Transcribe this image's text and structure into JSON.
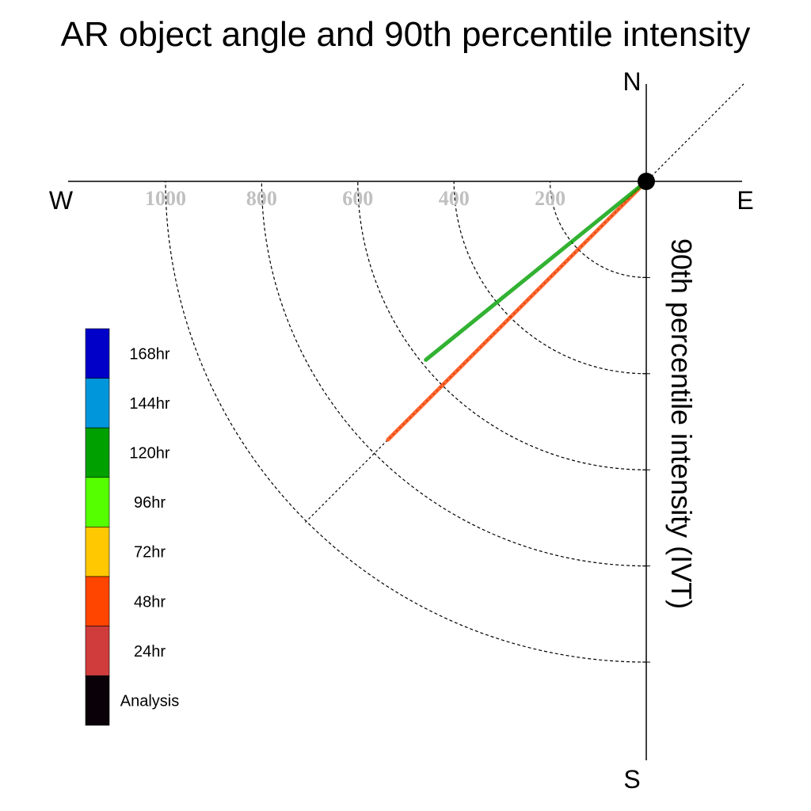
{
  "chart_data": {
    "type": "polar-line",
    "title": "AR object angle and 90th percentile intensity",
    "axis_title": "90th percentile intensity (IVT)",
    "directions": {
      "north": "N",
      "south": "S",
      "east": "E",
      "west": "W"
    },
    "ring_values": [
      200,
      400,
      600,
      800,
      1000
    ],
    "ring_labels": [
      "200",
      "400",
      "600",
      "800",
      "1000"
    ],
    "series": [
      {
        "name": "48hr",
        "angle_deg": 225,
        "magnitude": 760,
        "color": "#ff4500"
      },
      {
        "name": "120hr",
        "angle_deg": 231,
        "magnitude": 590,
        "color": "#00a000"
      }
    ],
    "reference_line_deg": [
      45,
      225
    ],
    "legend": {
      "placement": "left",
      "items": [
        {
          "label": "168hr",
          "color": "#0000c8"
        },
        {
          "label": "144hr",
          "color": "#0096dc"
        },
        {
          "label": "120hr",
          "color": "#00a000"
        },
        {
          "label": "96hr",
          "color": "#55ff00"
        },
        {
          "label": "72hr",
          "color": "#ffc800"
        },
        {
          "label": "48hr",
          "color": "#ff4500"
        },
        {
          "label": "24hr",
          "color": "#d03c3c"
        },
        {
          "label": "Analysis",
          "color": "#0a0008"
        }
      ]
    }
  }
}
